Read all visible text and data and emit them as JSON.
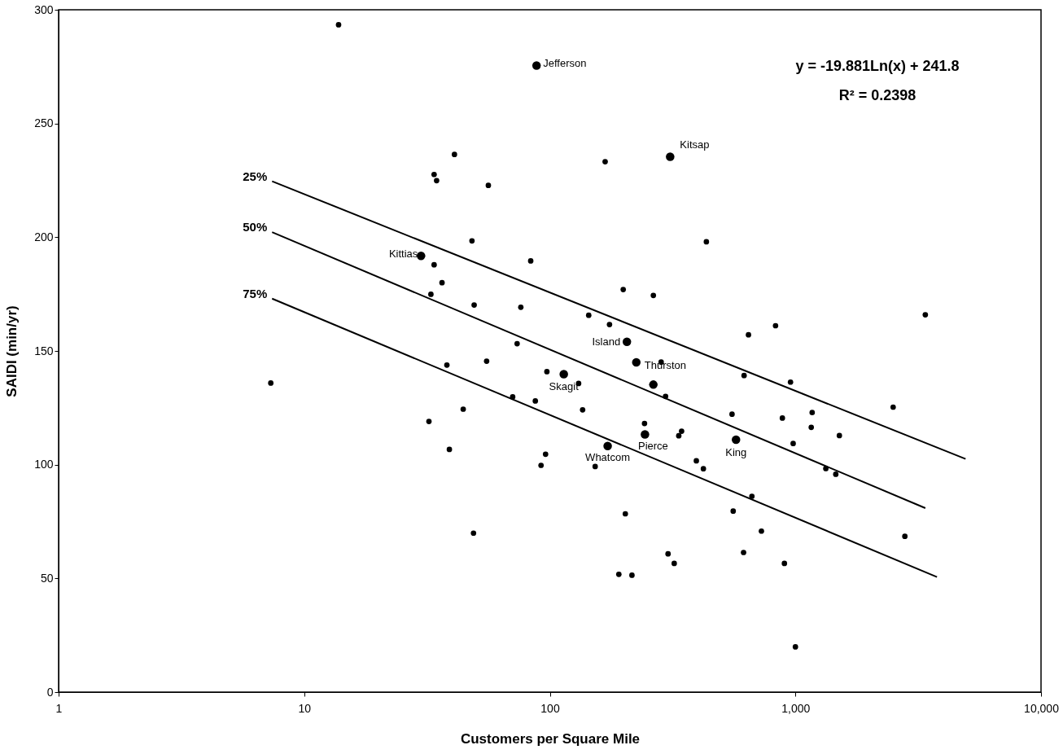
{
  "chart_data": {
    "type": "scatter",
    "xlabel": "Customers per Square Mile",
    "ylabel": "SAIDI (min/yr)",
    "log": "x",
    "xlim": [
      1,
      10000
    ],
    "xticks": [
      1,
      10,
      100,
      {
        "value": 1000,
        "label": "1,000"
      },
      {
        "value": 10000,
        "label": "10,000"
      }
    ],
    "ylim": [
      0,
      300
    ],
    "yticks": [
      0,
      50,
      100,
      150,
      200,
      250,
      300
    ],
    "grid": false,
    "legend": false,
    "marker": "circle",
    "annotations": [
      "y = -19.881Ln(x) + 241.8",
      "R² = 0.2398"
    ],
    "series": [
      {
        "color": "#000000",
        "x": [
          13.8,
          40.9,
          33.8,
          34.6,
          56.2,
          48.2,
          83.6,
          33.8,
          36.4,
          32.8,
          49.2,
          76.2,
          73.6,
          7.31,
          38.1,
          55.3,
          97.3,
          70.6,
          87.3,
          44.4,
          32.2,
          39,
          96.1,
          92.1,
          48.9,
          168,
          434,
          199,
          264,
          144,
          175,
          3380,
          830,
          644,
          131,
          284,
          618,
          955,
          296,
          136,
          2500,
          552,
          885,
          1170,
          1160,
          1510,
          243,
          344,
          335,
          979,
          153,
          395,
          422,
          1330,
          1460,
          665,
          203,
          558,
          727,
          2790,
          303,
          615,
          321,
          902,
          191,
          216,
          1000
        ],
        "values": [
          293.4,
          236.4,
          227.6,
          224.9,
          222.8,
          198.4,
          189.6,
          187.9,
          180,
          174.9,
          170.2,
          169.2,
          153.2,
          135.9,
          143.8,
          145.5,
          140.9,
          129.8,
          128,
          124.4,
          119,
          106.7,
          104.6,
          99.7,
          69.9,
          233.2,
          198,
          177,
          174.4,
          165.7,
          161.6,
          165.9,
          161.1,
          157.1,
          135.7,
          145.1,
          139.2,
          136.3,
          130,
          124.1,
          125.3,
          122.2,
          120.5,
          122.9,
          116.4,
          112.8,
          118.1,
          114.7,
          112.7,
          109.3,
          99.2,
          101.7,
          98.2,
          98.3,
          95.8,
          86.1,
          78.4,
          79.6,
          70.8,
          68.5,
          60.8,
          61.4,
          56.6,
          56.6,
          51.8,
          51.4,
          19.9
        ]
      },
      {
        "color": "#000000",
        "x": [
          88.3,
          309,
          29.9,
          206,
          225,
          114,
          264,
          244,
          573,
          172
        ],
        "values": [
          275.5,
          235.4,
          191.8,
          154,
          145,
          139.8,
          135.2,
          113.3,
          111,
          108.2
        ],
        "value_labels": [
          "Jefferson",
          "Kitsap",
          "Kittias",
          "Island",
          "Thurston",
          "Skagit",
          null,
          "Pierce",
          "King",
          "Whatcom"
        ]
      },
      {
        "type": "line",
        "marker": "none",
        "line_style": "solid",
        "name": "25%",
        "color": "#000000",
        "x": [
          7.4,
          4930
        ],
        "values": [
          224.6,
          102.5
        ]
      },
      {
        "type": "line",
        "marker": "none",
        "line_style": "solid",
        "name": "50%",
        "color": "#000000",
        "x": [
          7.4,
          3380
        ],
        "values": [
          202.2,
          80.9
        ]
      },
      {
        "type": "line",
        "marker": "none",
        "line_style": "solid",
        "name": "75%",
        "color": "#000000",
        "x": [
          7.4,
          3770
        ],
        "values": [
          173.0,
          50.6
        ]
      }
    ]
  }
}
